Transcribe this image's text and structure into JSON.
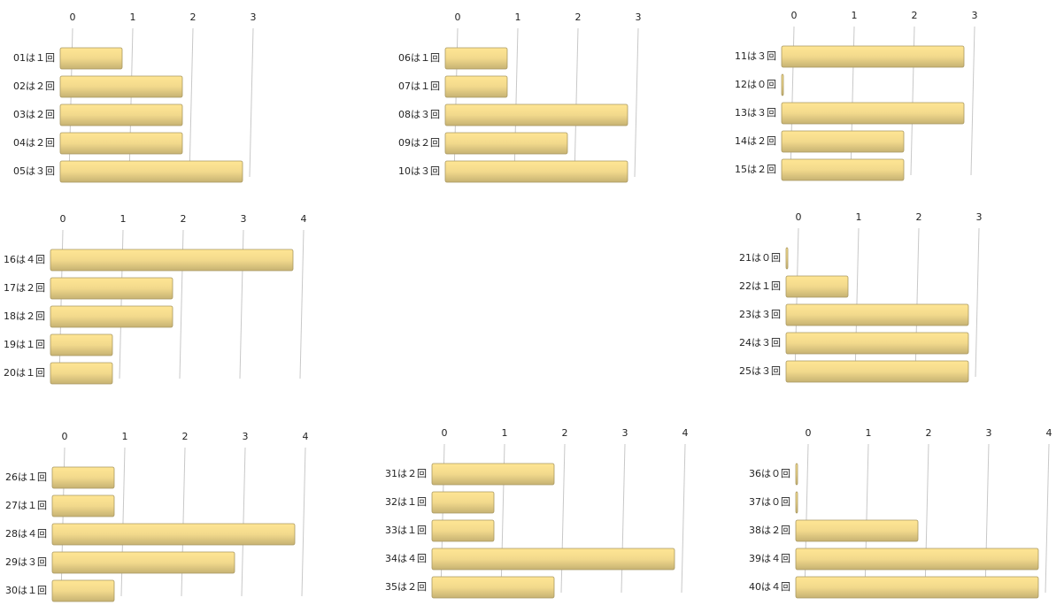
{
  "chart_data": [
    {
      "type": "bar",
      "orientation": "horizontal",
      "color": "#f2d98c",
      "categories": [
        "01は１回",
        "02は２回",
        "03は２回",
        "04は２回",
        "05は３回"
      ],
      "values": [
        1,
        2,
        2,
        2,
        3
      ],
      "xlim": [
        0,
        3
      ],
      "xticks": [
        0,
        1,
        2,
        3
      ],
      "grid": true
    },
    {
      "type": "bar",
      "orientation": "horizontal",
      "color": "#f2d98c",
      "categories": [
        "06は１回",
        "07は１回",
        "08は３回",
        "09は２回",
        "10は３回"
      ],
      "values": [
        1,
        1,
        3,
        2,
        3
      ],
      "xlim": [
        0,
        3
      ],
      "xticks": [
        0,
        1,
        2,
        3
      ],
      "grid": true
    },
    {
      "type": "bar",
      "orientation": "horizontal",
      "color": "#f2d98c",
      "categories": [
        "11は３回",
        "12は０回",
        "13は３回",
        "14は２回",
        "15は２回"
      ],
      "values": [
        3,
        0,
        3,
        2,
        2
      ],
      "xlim": [
        0,
        3
      ],
      "xticks": [
        0,
        1,
        2,
        3
      ],
      "grid": true
    },
    {
      "type": "bar",
      "orientation": "horizontal",
      "color": "#f2d98c",
      "categories": [
        "16は４回",
        "17は２回",
        "18は２回",
        "19は１回",
        "20は１回"
      ],
      "values": [
        4,
        2,
        2,
        1,
        1
      ],
      "xlim": [
        0,
        4
      ],
      "xticks": [
        0,
        1,
        2,
        3,
        4
      ],
      "grid": true
    },
    {
      "type": "bar",
      "orientation": "horizontal",
      "color": "#f2d98c",
      "categories": [
        "21は０回",
        "22は１回",
        "23は３回",
        "24は３回",
        "25は３回"
      ],
      "values": [
        0,
        1,
        3,
        3,
        3
      ],
      "xlim": [
        0,
        3
      ],
      "xticks": [
        0,
        1,
        2,
        3
      ],
      "grid": true
    },
    {
      "type": "bar",
      "orientation": "horizontal",
      "color": "#f2d98c",
      "categories": [
        "26は１回",
        "27は１回",
        "28は４回",
        "29は３回",
        "30は１回"
      ],
      "values": [
        1,
        1,
        4,
        3,
        1
      ],
      "xlim": [
        0,
        4
      ],
      "xticks": [
        0,
        1,
        2,
        3,
        4
      ],
      "grid": true
    },
    {
      "type": "bar",
      "orientation": "horizontal",
      "color": "#f2d98c",
      "categories": [
        "31は２回",
        "32は１回",
        "33は１回",
        "34は４回",
        "35は２回"
      ],
      "values": [
        2,
        1,
        1,
        4,
        2
      ],
      "xlim": [
        0,
        4
      ],
      "xticks": [
        0,
        1,
        2,
        3,
        4
      ],
      "grid": true
    },
    {
      "type": "bar",
      "orientation": "horizontal",
      "color": "#f2d98c",
      "categories": [
        "36は０回",
        "37は０回",
        "38は２回",
        "39は４回",
        "40は４回"
      ],
      "values": [
        0,
        0,
        2,
        4,
        4
      ],
      "xlim": [
        0,
        4
      ],
      "xticks": [
        0,
        1,
        2,
        3,
        4
      ],
      "grid": true
    }
  ]
}
